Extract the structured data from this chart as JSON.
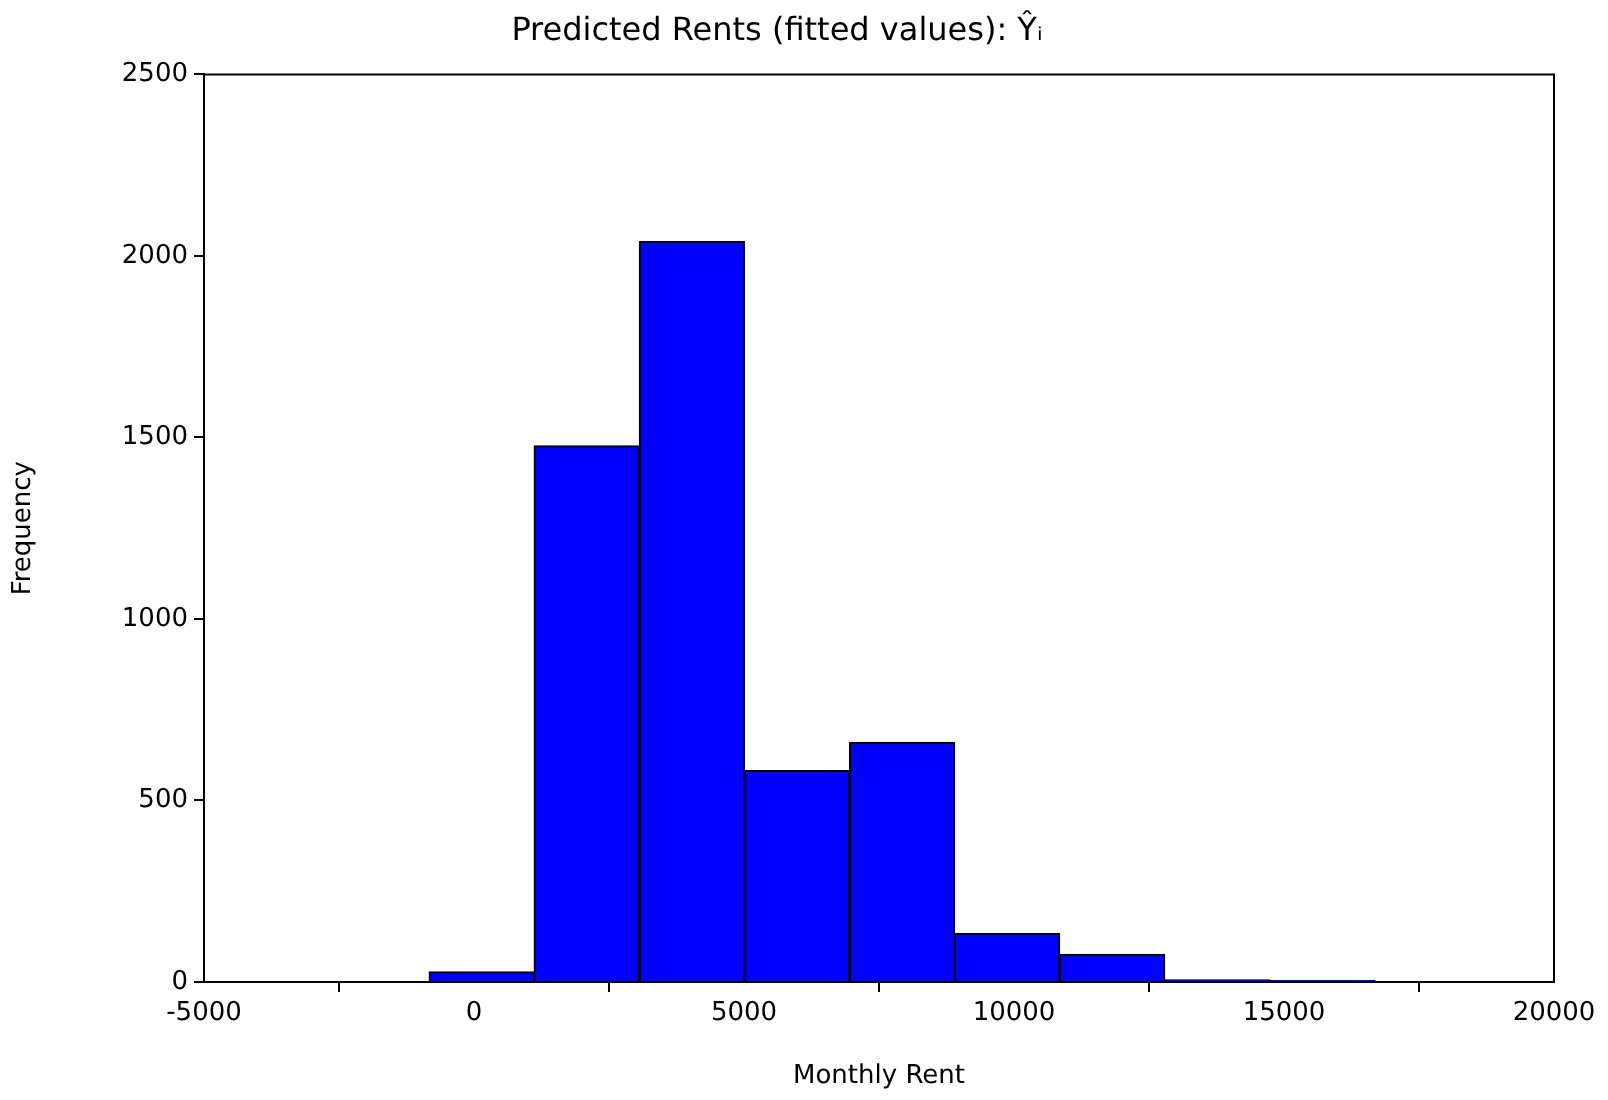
{
  "chart_data": {
    "type": "histogram",
    "title": "Predicted Rents (fitted values): Ŷᵢ",
    "xlabel": "Monthly Rent",
    "ylabel": "Frequency",
    "bins": [
      -830,
      1115,
      3060,
      5010,
      6955,
      8900,
      10845,
      12790,
      14740,
      16685
    ],
    "values": [
      28,
      1477,
      2039,
      582,
      660,
      133,
      76,
      6,
      4
    ],
    "color": "#0000ff",
    "xlim": [
      -5000,
      20000
    ],
    "xticks": [
      -5000,
      0,
      5000,
      10000,
      15000,
      20000
    ],
    "ylim": [
      0,
      2500
    ],
    "yticks": [
      0,
      500,
      1000,
      1500,
      2000,
      2500
    ],
    "grid": false,
    "legend": false
  }
}
